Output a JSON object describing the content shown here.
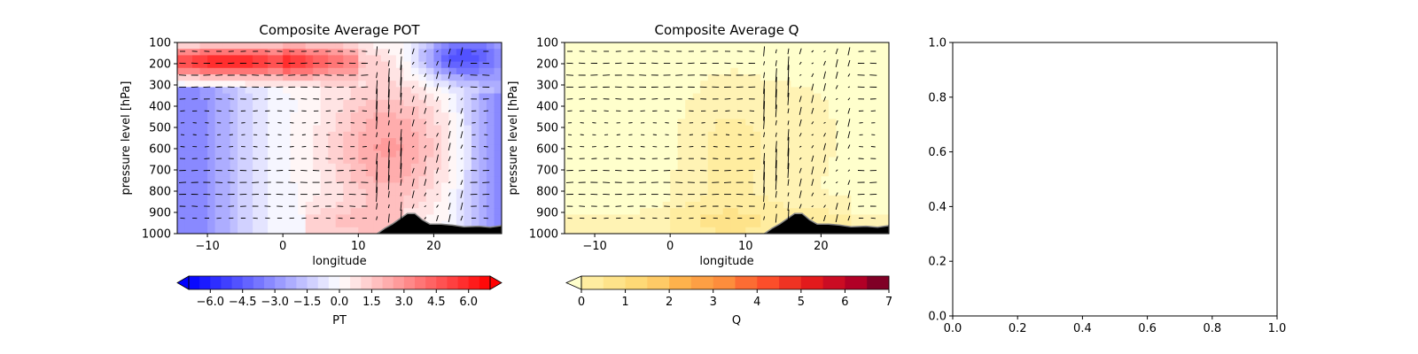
{
  "chart_data": [
    {
      "type": "heatmap",
      "title": "Composite Average POT",
      "xlabel": "longitude",
      "ylabel": "pressure level [hPa]",
      "xlim": [
        -14,
        29
      ],
      "ylim": [
        1000,
        100
      ],
      "x_ticks": [
        -10,
        0,
        10,
        20
      ],
      "y_ticks": [
        100,
        200,
        300,
        400,
        500,
        600,
        700,
        800,
        900,
        1000
      ],
      "y_tick_labels": [
        "100",
        "200",
        "300",
        "400",
        "500",
        "600",
        "700",
        "800",
        "900",
        "1000"
      ],
      "x_tick_labels": [
        "−10",
        "0",
        "10",
        "20"
      ],
      "colormap": "bwr",
      "color_min": "#0000ff",
      "color_mid": "#ffffff",
      "color_max": "#ff0000",
      "overlay": "wind vectors",
      "terrain_color": "#000000",
      "terrain_profile": [
        {
          "lon": 12.5,
          "p": 1000
        },
        {
          "lon": 13.5,
          "p": 975
        },
        {
          "lon": 14.5,
          "p": 955
        },
        {
          "lon": 15.5,
          "p": 930
        },
        {
          "lon": 16.5,
          "p": 905
        },
        {
          "lon": 17.5,
          "p": 905
        },
        {
          "lon": 18.5,
          "p": 935
        },
        {
          "lon": 19.5,
          "p": 955
        },
        {
          "lon": 21,
          "p": 955
        },
        {
          "lon": 22.5,
          "p": 960
        },
        {
          "lon": 24,
          "p": 968
        },
        {
          "lon": 26,
          "p": 965
        },
        {
          "lon": 27.5,
          "p": 970
        },
        {
          "lon": 29,
          "p": 962
        }
      ],
      "colorbar": {
        "label": "PT",
        "extend": "both",
        "ticks": [
          "−6.0",
          "−4.5",
          "−3.0",
          "−1.5",
          "0.0",
          "1.5",
          "3.0",
          "4.5",
          "6.0"
        ],
        "tick_values": [
          -6.0,
          -4.5,
          -3.0,
          -1.5,
          0.0,
          1.5,
          3.0,
          4.5,
          6.0
        ],
        "range": [
          -7.0,
          7.0
        ],
        "levels": 28
      }
    },
    {
      "type": "heatmap",
      "title": "Composite Average Q",
      "xlabel": "longitude",
      "ylabel": "pressure level [hPa]",
      "xlim": [
        -14,
        29
      ],
      "ylim": [
        1000,
        100
      ],
      "x_ticks": [
        -10,
        0,
        10,
        20
      ],
      "y_ticks": [
        100,
        200,
        300,
        400,
        500,
        600,
        700,
        800,
        900,
        1000
      ],
      "y_tick_labels": [
        "100",
        "200",
        "300",
        "400",
        "500",
        "600",
        "700",
        "800",
        "900",
        "1000"
      ],
      "x_tick_labels": [
        "−10",
        "0",
        "10",
        "20"
      ],
      "colormap": "YlOrRd",
      "overlay": "wind vectors",
      "terrain_color": "#000000",
      "colorbar": {
        "label": "Q",
        "extend": "min",
        "ticks": [
          "0",
          "1",
          "2",
          "3",
          "4",
          "5",
          "6",
          "7"
        ],
        "tick_values": [
          0,
          1,
          2,
          3,
          4,
          5,
          6,
          7
        ],
        "range": [
          0,
          7
        ],
        "levels": 14,
        "colors": [
          "#ffeda0",
          "#fee38a",
          "#fed976",
          "#feca66",
          "#feb24c",
          "#fd9f44",
          "#fd8d3c",
          "#fc6c33",
          "#fc4e2a",
          "#ef3323",
          "#e31a1c",
          "#cb0c23",
          "#b10026",
          "#800026"
        ]
      }
    },
    {
      "type": "scatter",
      "title": "",
      "xlabel": "",
      "ylabel": "",
      "xlim": [
        0,
        1
      ],
      "ylim": [
        0,
        1
      ],
      "x_ticks": [
        0.0,
        0.2,
        0.4,
        0.6,
        0.8,
        1.0
      ],
      "y_ticks": [
        0.0,
        0.2,
        0.4,
        0.6,
        0.8,
        1.0
      ],
      "x_tick_labels": [
        "0.0",
        "0.2",
        "0.4",
        "0.6",
        "0.8",
        "1.0"
      ],
      "y_tick_labels": [
        "0.0",
        "0.2",
        "0.4",
        "0.6",
        "0.8",
        "1.0"
      ],
      "series": []
    }
  ]
}
